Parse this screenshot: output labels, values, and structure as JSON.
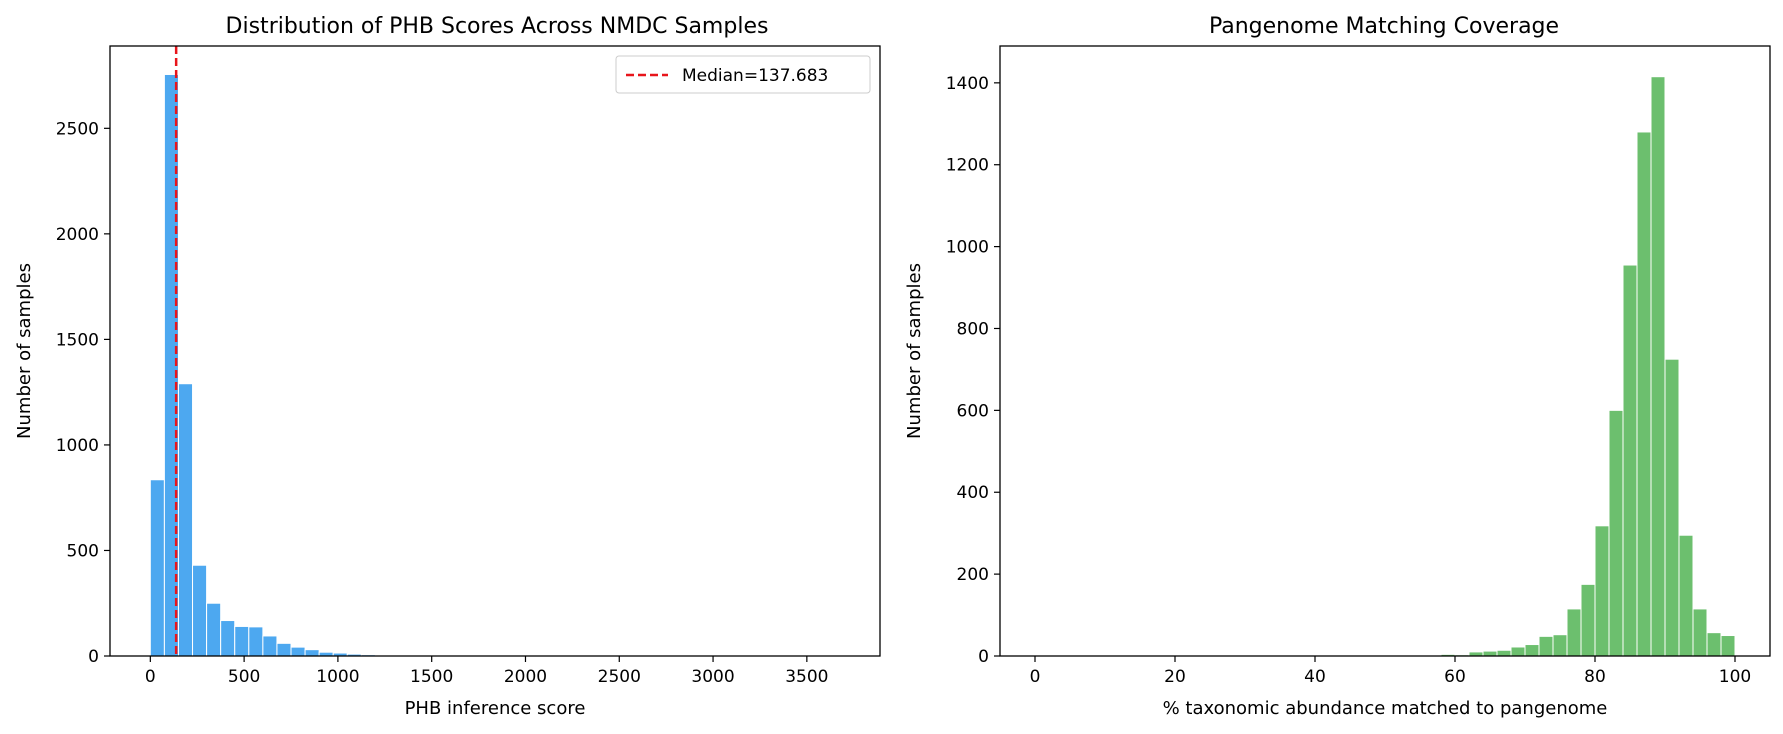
{
  "chart_data": [
    {
      "type": "bar",
      "title": "Distribution of PHB Scores Across NMDC Samples",
      "xlabel": "PHB inference score",
      "ylabel": "Number of samples",
      "xlim": [
        -215,
        3890
      ],
      "ylim": [
        0,
        2890
      ],
      "xticks": [
        0,
        500,
        1000,
        1500,
        2000,
        2500,
        3000,
        3500
      ],
      "yticks": [
        0,
        500,
        1000,
        1500,
        2000,
        2500
      ],
      "bin_width": 75,
      "bin_start": 0,
      "color": "#4DA8F0",
      "values": [
        835,
        2755,
        1290,
        430,
        250,
        168,
        140,
        138,
        95,
        60,
        42,
        30,
        18,
        14,
        9,
        6,
        4,
        3,
        2,
        2,
        1,
        1,
        1,
        1,
        1,
        0,
        0,
        0,
        0,
        0,
        0,
        0,
        0,
        0,
        0,
        0,
        0,
        0,
        0,
        0,
        0,
        0,
        0,
        0,
        0,
        0,
        0,
        0,
        0,
        0
      ],
      "median_line": {
        "value": 137.683,
        "label": "Median=137.683",
        "color": "#E8151B"
      },
      "legend": "top-right",
      "grid": false
    },
    {
      "type": "bar",
      "title": "Pangenome Matching Coverage",
      "xlabel": "% taxonomic abundance matched to pangenome",
      "ylabel": "Number of samples",
      "xlim": [
        -5,
        105
      ],
      "ylim": [
        0,
        1490
      ],
      "xticks": [
        0,
        20,
        40,
        60,
        80,
        100
      ],
      "yticks": [
        0,
        200,
        400,
        600,
        800,
        1000,
        1200,
        1400
      ],
      "bin_width": 2,
      "bin_start": 0,
      "color": "#6CBF6E",
      "values": [
        0,
        0,
        0,
        0,
        0,
        0,
        0,
        0,
        0,
        0,
        0,
        0,
        0,
        0,
        0,
        0,
        0,
        0,
        0,
        0,
        0,
        0,
        0,
        0,
        0,
        0,
        0,
        0,
        2,
        4,
        3,
        10,
        12,
        14,
        22,
        28,
        48,
        52,
        115,
        175,
        318,
        600,
        955,
        1280,
        1415,
        725,
        295,
        115,
        57,
        50
      ],
      "legend": "none",
      "grid": false
    }
  ]
}
